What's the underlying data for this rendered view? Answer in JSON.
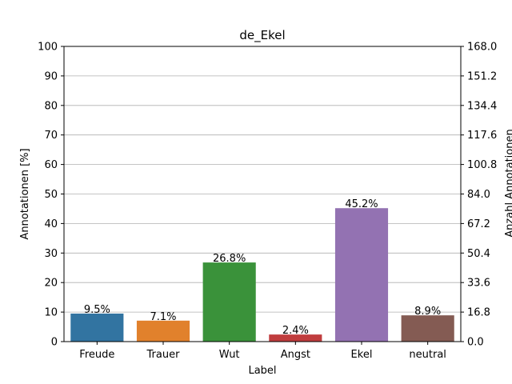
{
  "chart_data": {
    "type": "bar",
    "title": "de_Ekel",
    "xlabel": "Label",
    "ylabel": "Annotationen [%]",
    "y2label": "Anzahl Annotationen",
    "categories": [
      "Freude",
      "Trauer",
      "Wut",
      "Angst",
      "Ekel",
      "neutral"
    ],
    "values": [
      9.5,
      7.1,
      26.8,
      2.4,
      45.2,
      8.9
    ],
    "value_labels": [
      "9.5%",
      "7.1%",
      "26.8%",
      "2.4%",
      "45.2%",
      "8.9%"
    ],
    "colors": [
      "#3274a1",
      "#e1812c",
      "#3a923a",
      "#c03d3e",
      "#9372b2",
      "#845b53"
    ],
    "ylim": [
      0,
      100
    ],
    "yticks": [
      "0",
      "10",
      "20",
      "30",
      "40",
      "50",
      "60",
      "70",
      "80",
      "90",
      "100"
    ],
    "y2lim": [
      0,
      168.0
    ],
    "y2ticks": [
      "0.0",
      "16.8",
      "33.6",
      "50.4",
      "67.2",
      "84.0",
      "100.8",
      "117.6",
      "134.4",
      "151.2",
      "168.0"
    ],
    "grid": true
  }
}
